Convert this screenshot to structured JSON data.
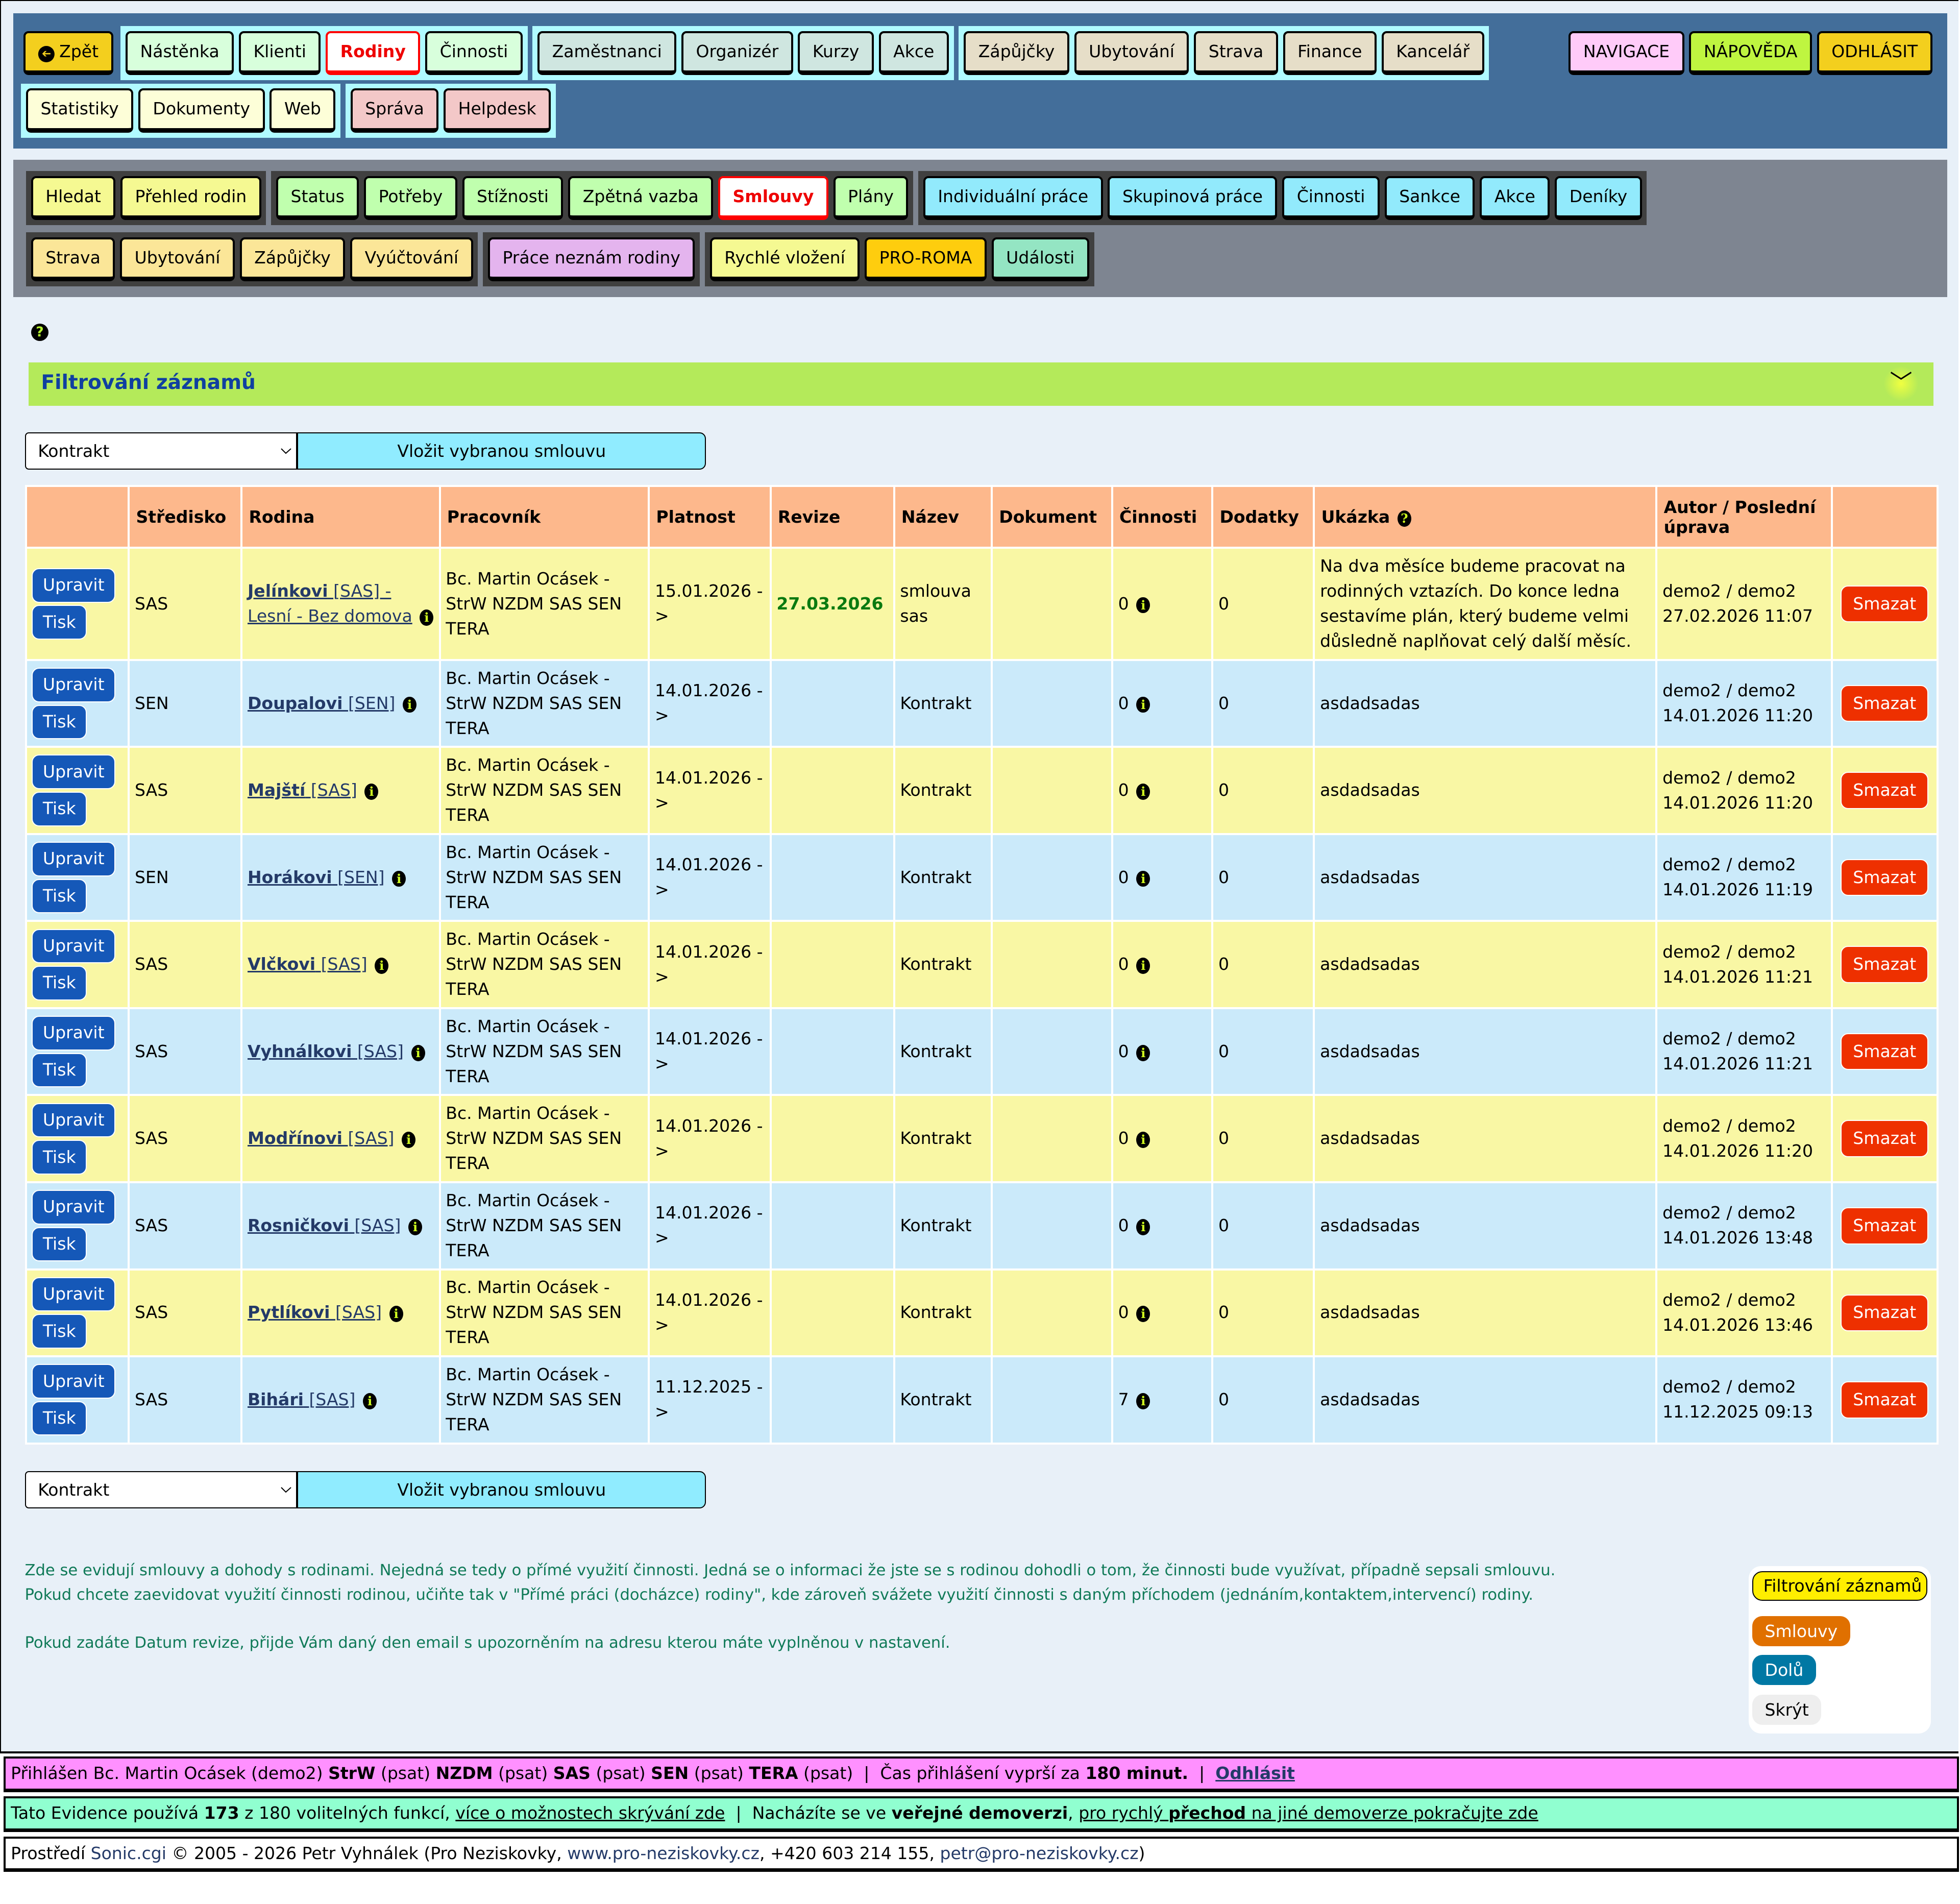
{
  "nav1": {
    "rows": [
      [
        {
          "items": [
            {
              "label": "Zpět",
              "color": "#f3cf1e",
              "icon": "arrow-left-circle-icon"
            }
          ],
          "plain": true
        },
        {
          "items": [
            {
              "label": "Nástěnka",
              "color": "#d8ffdc"
            },
            {
              "label": "Klienti",
              "color": "#d8ffdc"
            },
            {
              "label": "Rodiny",
              "color": "#fff",
              "active": true
            },
            {
              "label": "Činnosti",
              "color": "#d8ffdc"
            }
          ]
        },
        {
          "items": [
            {
              "label": "Zaměstnanci",
              "color": "#cfe6e0"
            },
            {
              "label": "Organizér",
              "color": "#cfe6e0"
            },
            {
              "label": "Kurzy",
              "color": "#cfe6e0"
            },
            {
              "label": "Akce",
              "color": "#cfe6e0"
            }
          ]
        },
        {
          "items": [
            {
              "label": "Zápůjčky",
              "color": "#e6dec8"
            },
            {
              "label": "Ubytování",
              "color": "#e6dec8"
            },
            {
              "label": "Strava",
              "color": "#e6dec8"
            },
            {
              "label": "Finance",
              "color": "#e6dec8"
            },
            {
              "label": "Kancelář",
              "color": "#e6dec8"
            }
          ]
        }
      ],
      [
        {
          "items": [
            {
              "label": "Statistiky",
              "color": "#fdfed8"
            },
            {
              "label": "Dokumenty",
              "color": "#fdfed8"
            },
            {
              "label": "Web",
              "color": "#fdfed8"
            }
          ]
        },
        {
          "items": [
            {
              "label": "Správa",
              "color": "#f3c8c8"
            },
            {
              "label": "Helpdesk",
              "color": "#f3c8c8"
            }
          ]
        }
      ]
    ],
    "right": [
      {
        "label": "NAVIGACE",
        "color": "#ffcbf9"
      },
      {
        "label": "NÁPOVĚDA",
        "color": "#bff540"
      },
      {
        "label": "ODHLÁSIT",
        "color": "#f3cf1e"
      }
    ]
  },
  "nav2": {
    "rows": [
      [
        {
          "items": [
            {
              "label": "Hledat",
              "color": "#f5f992"
            },
            {
              "label": "Přehled rodin",
              "color": "#f5f992"
            }
          ]
        },
        {
          "items": [
            {
              "label": "Status",
              "color": "#c0ffae"
            },
            {
              "label": "Potřeby",
              "color": "#c0ffae"
            },
            {
              "label": "Stížnosti",
              "color": "#c0ffae"
            },
            {
              "label": "Zpětná vazba",
              "color": "#c0ffae"
            },
            {
              "label": "Smlouvy",
              "color": "#fff",
              "active": true
            },
            {
              "label": "Plány",
              "color": "#c0ffae"
            }
          ]
        },
        {
          "items": [
            {
              "label": "Individuální práce",
              "color": "#92eafc"
            },
            {
              "label": "Skupinová práce",
              "color": "#92eafc"
            },
            {
              "label": "Činnosti",
              "color": "#92eafc"
            },
            {
              "label": "Sankce",
              "color": "#92eafc"
            },
            {
              "label": "Akce",
              "color": "#92eafc"
            },
            {
              "label": "Deníky",
              "color": "#92eafc"
            }
          ]
        }
      ],
      [
        {
          "items": [
            {
              "label": "Strava",
              "color": "#fbe698"
            },
            {
              "label": "Ubytování",
              "color": "#fbe698"
            },
            {
              "label": "Zápůjčky",
              "color": "#fbe698"
            },
            {
              "label": "Vyúčtování",
              "color": "#fbe698"
            }
          ]
        },
        {
          "items": [
            {
              "label": "Práce neznám rodiny",
              "color": "#e4b4ee"
            }
          ]
        },
        {
          "items": [
            {
              "label": "Rychlé vložení",
              "color": "#f5f992"
            },
            {
              "label": "PRO-ROMA",
              "color": "#fecd0e"
            },
            {
              "label": "Události",
              "color": "#94e5c3"
            }
          ]
        }
      ]
    ]
  },
  "filter": {
    "title": "Filtrování záznamů",
    "icon": "chevron-down-icon"
  },
  "insert": {
    "select_value": "Kontrakt",
    "button": "Vložit vybranou smlouvu"
  },
  "table": {
    "headers": [
      "",
      "Středisko",
      "Rodina",
      "Pracovník",
      "Platnost",
      "Revize",
      "Název",
      "Dokument",
      "Činnosti",
      "Dodatky",
      "Ukázka",
      "Autor / Poslední úprava",
      ""
    ],
    "edit_label": "Upravit",
    "print_label": "Tisk",
    "delete_label": "Smazat",
    "rows": [
      {
        "center": "SAS",
        "family": "Jelínkovi",
        "family_tag": "[SAS] - Lesní - Bez domova",
        "worker": "Bc. Martin Ocásek - StrW NZDM SAS SEN TERA",
        "validity": "15.01.2026 ->",
        "revision": "27.03.2026",
        "name": "smlouva sas",
        "document": "",
        "activities": "0",
        "addenda": "0",
        "preview": "Na dva měsíce budeme pracovat na rodinných vztazích. Do konce ledna sestavíme plán, který budeme velmi důsledně naplňovat celý další měsíc.",
        "author": "demo2 / demo2",
        "modified": "27.02.2026 11:07"
      },
      {
        "center": "SEN",
        "family": "Doupalovi",
        "family_tag": "[SEN]",
        "worker": "Bc. Martin Ocásek - StrW NZDM SAS SEN TERA",
        "validity": "14.01.2026 ->",
        "revision": "",
        "name": "Kontrakt",
        "document": "",
        "activities": "0",
        "addenda": "0",
        "preview": "asdadsadas",
        "author": "demo2 / demo2",
        "modified": "14.01.2026 11:20"
      },
      {
        "center": "SAS",
        "family": "Majští",
        "family_tag": "[SAS]",
        "worker": "Bc. Martin Ocásek - StrW NZDM SAS SEN TERA",
        "validity": "14.01.2026 ->",
        "revision": "",
        "name": "Kontrakt",
        "document": "",
        "activities": "0",
        "addenda": "0",
        "preview": "asdadsadas",
        "author": "demo2 / demo2",
        "modified": "14.01.2026 11:20"
      },
      {
        "center": "SEN",
        "family": "Horákovi",
        "family_tag": "[SEN]",
        "worker": "Bc. Martin Ocásek - StrW NZDM SAS SEN TERA",
        "validity": "14.01.2026 ->",
        "revision": "",
        "name": "Kontrakt",
        "document": "",
        "activities": "0",
        "addenda": "0",
        "preview": "asdadsadas",
        "author": "demo2 / demo2",
        "modified": "14.01.2026 11:19"
      },
      {
        "center": "SAS",
        "family": "Vlčkovi",
        "family_tag": "[SAS]",
        "worker": "Bc. Martin Ocásek - StrW NZDM SAS SEN TERA",
        "validity": "14.01.2026 ->",
        "revision": "",
        "name": "Kontrakt",
        "document": "",
        "activities": "0",
        "addenda": "0",
        "preview": "asdadsadas",
        "author": "demo2 / demo2",
        "modified": "14.01.2026 11:21"
      },
      {
        "center": "SAS",
        "family": "Vyhnálkovi",
        "family_tag": "[SAS]",
        "worker": "Bc. Martin Ocásek - StrW NZDM SAS SEN TERA",
        "validity": "14.01.2026 ->",
        "revision": "",
        "name": "Kontrakt",
        "document": "",
        "activities": "0",
        "addenda": "0",
        "preview": "asdadsadas",
        "author": "demo2 / demo2",
        "modified": "14.01.2026 11:21"
      },
      {
        "center": "SAS",
        "family": "Modřínovi",
        "family_tag": "[SAS]",
        "worker": "Bc. Martin Ocásek - StrW NZDM SAS SEN TERA",
        "validity": "14.01.2026 ->",
        "revision": "",
        "name": "Kontrakt",
        "document": "",
        "activities": "0",
        "addenda": "0",
        "preview": "asdadsadas",
        "author": "demo2 / demo2",
        "modified": "14.01.2026 11:20"
      },
      {
        "center": "SAS",
        "family": "Rosničkovi",
        "family_tag": "[SAS]",
        "worker": "Bc. Martin Ocásek - StrW NZDM SAS SEN TERA",
        "validity": "14.01.2026 ->",
        "revision": "",
        "name": "Kontrakt",
        "document": "",
        "activities": "0",
        "addenda": "0",
        "preview": "asdadsadas",
        "author": "demo2 / demo2",
        "modified": "14.01.2026 13:48"
      },
      {
        "center": "SAS",
        "family": "Pytlíkovi",
        "family_tag": "[SAS]",
        "worker": "Bc. Martin Ocásek - StrW NZDM SAS SEN TERA",
        "validity": "14.01.2026 ->",
        "revision": "",
        "name": "Kontrakt",
        "document": "",
        "activities": "0",
        "addenda": "0",
        "preview": "asdadsadas",
        "author": "demo2 / demo2",
        "modified": "14.01.2026 13:46"
      },
      {
        "center": "SAS",
        "family": "Bihári",
        "family_tag": "[SAS]",
        "worker": "Bc. Martin Ocásek - StrW NZDM SAS SEN TERA",
        "validity": "11.12.2025 ->",
        "revision": "",
        "name": "Kontrakt",
        "document": "",
        "activities": "7",
        "addenda": "0",
        "preview": "asdadsadas",
        "author": "demo2 / demo2",
        "modified": "11.12.2025 09:13"
      }
    ]
  },
  "popup": [
    {
      "label": "Filtrování záznamů",
      "color": "#ffee00",
      "text": "#000"
    },
    {
      "label": "Smlouvy",
      "color": "#e07000",
      "text": "#fff"
    },
    {
      "label": "Dolů",
      "color": "#0078a4",
      "text": "#fff"
    },
    {
      "label": "Skrýt",
      "color": "#eeeeee",
      "text": "#000"
    }
  ],
  "notes": [
    "Zde se evidují smlouvy a dohody s rodinami. Nejedná se tedy o přímé využití činnosti. Jedná se o informaci že jste se s rodinou dohodli o tom, že činnosti bude využívat, případně sepsali smlouvu.",
    "Pokud chcete zaevidovat využití činnosti rodinou, učiňte tak v \"Přímé práci (docházce) rodiny\", kde zároveň svážete využití činnosti s daným příchodem (jednáním,kontaktem,intervencí) rodiny.",
    "Pokud zadáte Datum revize, přijde Vám daný den email s upozorněním na adresu kterou máte vyplněnou v nastavení."
  ],
  "footer": {
    "login": [
      [
        "Přihlášen Bc. Martin Ocásek (demo2) ",
        ""
      ],
      [
        "StrW",
        "b"
      ],
      [
        " (psat) ",
        ""
      ],
      [
        "NZDM",
        "b"
      ],
      [
        " (psat) ",
        ""
      ],
      [
        "SAS",
        "b"
      ],
      [
        " (psat) ",
        ""
      ],
      [
        "SEN",
        "b"
      ],
      [
        " (psat) ",
        ""
      ],
      [
        "TERA",
        "b"
      ],
      [
        " (psat)  |  Čas přihlášení vyprší za ",
        ""
      ],
      [
        "180 minut.",
        "b"
      ],
      [
        "  |  ",
        ""
      ],
      [
        "Odhlásit",
        "bl"
      ]
    ],
    "usage": [
      [
        "Tato Evidence používá ",
        ""
      ],
      [
        "173",
        "b"
      ],
      [
        " z 180 volitelných funkcí, ",
        ""
      ],
      [
        "více o možnostech skrývání zde",
        "u"
      ],
      [
        "  |  Nacházíte se ve ",
        ""
      ],
      [
        "veřejné demoverzi",
        "b"
      ],
      [
        ", ",
        ""
      ],
      [
        "pro rychlý ",
        "u"
      ],
      [
        "přechod",
        "bu"
      ],
      [
        " na jiné demoverze pokračujte zde",
        "u"
      ]
    ],
    "credits": [
      [
        "Prostředí ",
        ""
      ],
      [
        "Sonic.cgi",
        "l"
      ],
      [
        " © 2005 - 2026 Petr Vyhnálek (Pro Neziskovky, ",
        ""
      ],
      [
        "www.pro-neziskovky.cz",
        "l"
      ],
      [
        ", +420 603 214 155, ",
        ""
      ],
      [
        "petr@pro-neziskovky.cz",
        "l"
      ],
      [
        ")",
        ""
      ]
    ]
  }
}
